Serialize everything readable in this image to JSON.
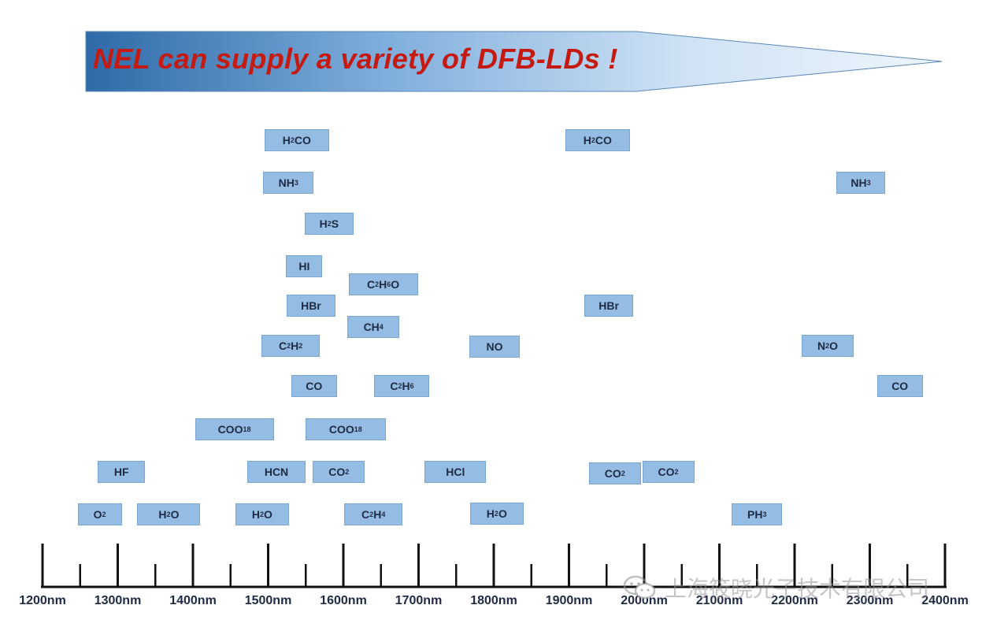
{
  "banner": {
    "title": "NEL can supply a variety of DFB-LDs !",
    "colors": {
      "dark": "#2e6aa8",
      "light": "#eef5fc",
      "text": "#c41a12"
    }
  },
  "axis": {
    "unit": "nm",
    "range": [
      1200,
      2400
    ],
    "major_step": 100,
    "minor_step": 50,
    "tick_labels": [
      "1200nm",
      "1300nm",
      "1400nm",
      "1500nm",
      "1600nm",
      "1700nm",
      "1800nm",
      "1900nm",
      "2000nm",
      "2100nm",
      "2200nm",
      "2300nm",
      "2400nm"
    ]
  },
  "gases": [
    {
      "parts": [
        [
          "t",
          "H"
        ],
        [
          "sub",
          "2"
        ],
        [
          "t",
          "CO"
        ]
      ],
      "label": "H2CO",
      "wl": 1538
    },
    {
      "parts": [
        [
          "t",
          "H"
        ],
        [
          "sub",
          "2"
        ],
        [
          "t",
          "CO"
        ]
      ],
      "label": "H2CO",
      "wl": 1938
    },
    {
      "parts": [
        [
          "t",
          "NH"
        ],
        [
          "sub",
          "3"
        ]
      ],
      "label": "NH3",
      "wl": 1527
    },
    {
      "parts": [
        [
          "t",
          "NH"
        ],
        [
          "sub",
          "3"
        ]
      ],
      "label": "NH3",
      "wl": 2288
    },
    {
      "parts": [
        [
          "t",
          "H"
        ],
        [
          "sub",
          "2"
        ],
        [
          "t",
          "S"
        ]
      ],
      "label": "H2S",
      "wl": 1581
    },
    {
      "parts": [
        [
          "t",
          "HI"
        ]
      ],
      "label": "HI",
      "wl": 1548
    },
    {
      "parts": [
        [
          "t",
          "C"
        ],
        [
          "sub",
          "2"
        ],
        [
          "t",
          "H"
        ],
        [
          "sub",
          "6"
        ],
        [
          "t",
          "O"
        ]
      ],
      "label": "C2H6O",
      "wl": 1653
    },
    {
      "parts": [
        [
          "t",
          "HBr"
        ]
      ],
      "label": "HBr",
      "wl": 1557
    },
    {
      "parts": [
        [
          "t",
          "HBr"
        ]
      ],
      "label": "HBr",
      "wl": 1953
    },
    {
      "parts": [
        [
          "t",
          "CH"
        ],
        [
          "sub",
          "4"
        ]
      ],
      "label": "CH4",
      "wl": 1640
    },
    {
      "parts": [
        [
          "t",
          "C"
        ],
        [
          "sub",
          "2"
        ],
        [
          "t",
          "H"
        ],
        [
          "sub",
          "2"
        ]
      ],
      "label": "C2H2",
      "wl": 1530
    },
    {
      "parts": [
        [
          "t",
          "NO"
        ]
      ],
      "label": "NO",
      "wl": 1801
    },
    {
      "parts": [
        [
          "t",
          "N"
        ],
        [
          "sub",
          "2"
        ],
        [
          "t",
          "O"
        ]
      ],
      "label": "N2O",
      "wl": 2244
    },
    {
      "parts": [
        [
          "t",
          "CO"
        ]
      ],
      "label": "CO",
      "wl": 1561
    },
    {
      "parts": [
        [
          "t",
          "C"
        ],
        [
          "sub",
          "2"
        ],
        [
          "t",
          "H"
        ],
        [
          "sub",
          "6"
        ]
      ],
      "label": "C2H6",
      "wl": 1678
    },
    {
      "parts": [
        [
          "t",
          "CO"
        ]
      ],
      "label": "CO",
      "wl": 2340
    },
    {
      "parts": [
        [
          "t",
          "COO"
        ],
        [
          "sup",
          "18"
        ]
      ],
      "label": "COO18",
      "wl": 1455
    },
    {
      "parts": [
        [
          "t",
          "COO"
        ],
        [
          "sup",
          "18"
        ]
      ],
      "label": "COO18",
      "wl": 1603
    },
    {
      "parts": [
        [
          "t",
          "HF"
        ]
      ],
      "label": "HF",
      "wl": 1305
    },
    {
      "parts": [
        [
          "t",
          "HCN"
        ]
      ],
      "label": "HCN",
      "wl": 1511
    },
    {
      "parts": [
        [
          "t",
          "CO"
        ],
        [
          "sub",
          "2"
        ]
      ],
      "label": "CO2",
      "wl": 1594
    },
    {
      "parts": [
        [
          "t",
          "HCl"
        ]
      ],
      "label": "HCl",
      "wl": 1749
    },
    {
      "parts": [
        [
          "t",
          "CO"
        ],
        [
          "sub",
          "2"
        ]
      ],
      "label": "CO2",
      "wl": 1961
    },
    {
      "parts": [
        [
          "t",
          "CO"
        ],
        [
          "sub",
          "2"
        ]
      ],
      "label": "CO2",
      "wl": 2032
    },
    {
      "parts": [
        [
          "t",
          "O"
        ],
        [
          "sub",
          "2"
        ]
      ],
      "label": "O2",
      "wl": 1276
    },
    {
      "parts": [
        [
          "t",
          "H"
        ],
        [
          "sub",
          "2"
        ],
        [
          "t",
          "O"
        ]
      ],
      "label": "H2O",
      "wl": 1368
    },
    {
      "parts": [
        [
          "t",
          "H"
        ],
        [
          "sub",
          "2"
        ],
        [
          "t",
          "O"
        ]
      ],
      "label": "H2O",
      "wl": 1492
    },
    {
      "parts": [
        [
          "t",
          "C"
        ],
        [
          "sub",
          "2"
        ],
        [
          "t",
          "H"
        ],
        [
          "sub",
          "4"
        ]
      ],
      "label": "C2H4",
      "wl": 1640
    },
    {
      "parts": [
        [
          "t",
          "H"
        ],
        [
          "sub",
          "2"
        ],
        [
          "t",
          "O"
        ]
      ],
      "label": "H2O",
      "wl": 1804
    },
    {
      "parts": [
        [
          "t",
          "PH"
        ],
        [
          "sub",
          "3"
        ]
      ],
      "label": "PH3",
      "wl": 2150
    }
  ],
  "watermark": {
    "text": "上海筱晓光子技术有限公司",
    "icon": "wechat-icon"
  }
}
